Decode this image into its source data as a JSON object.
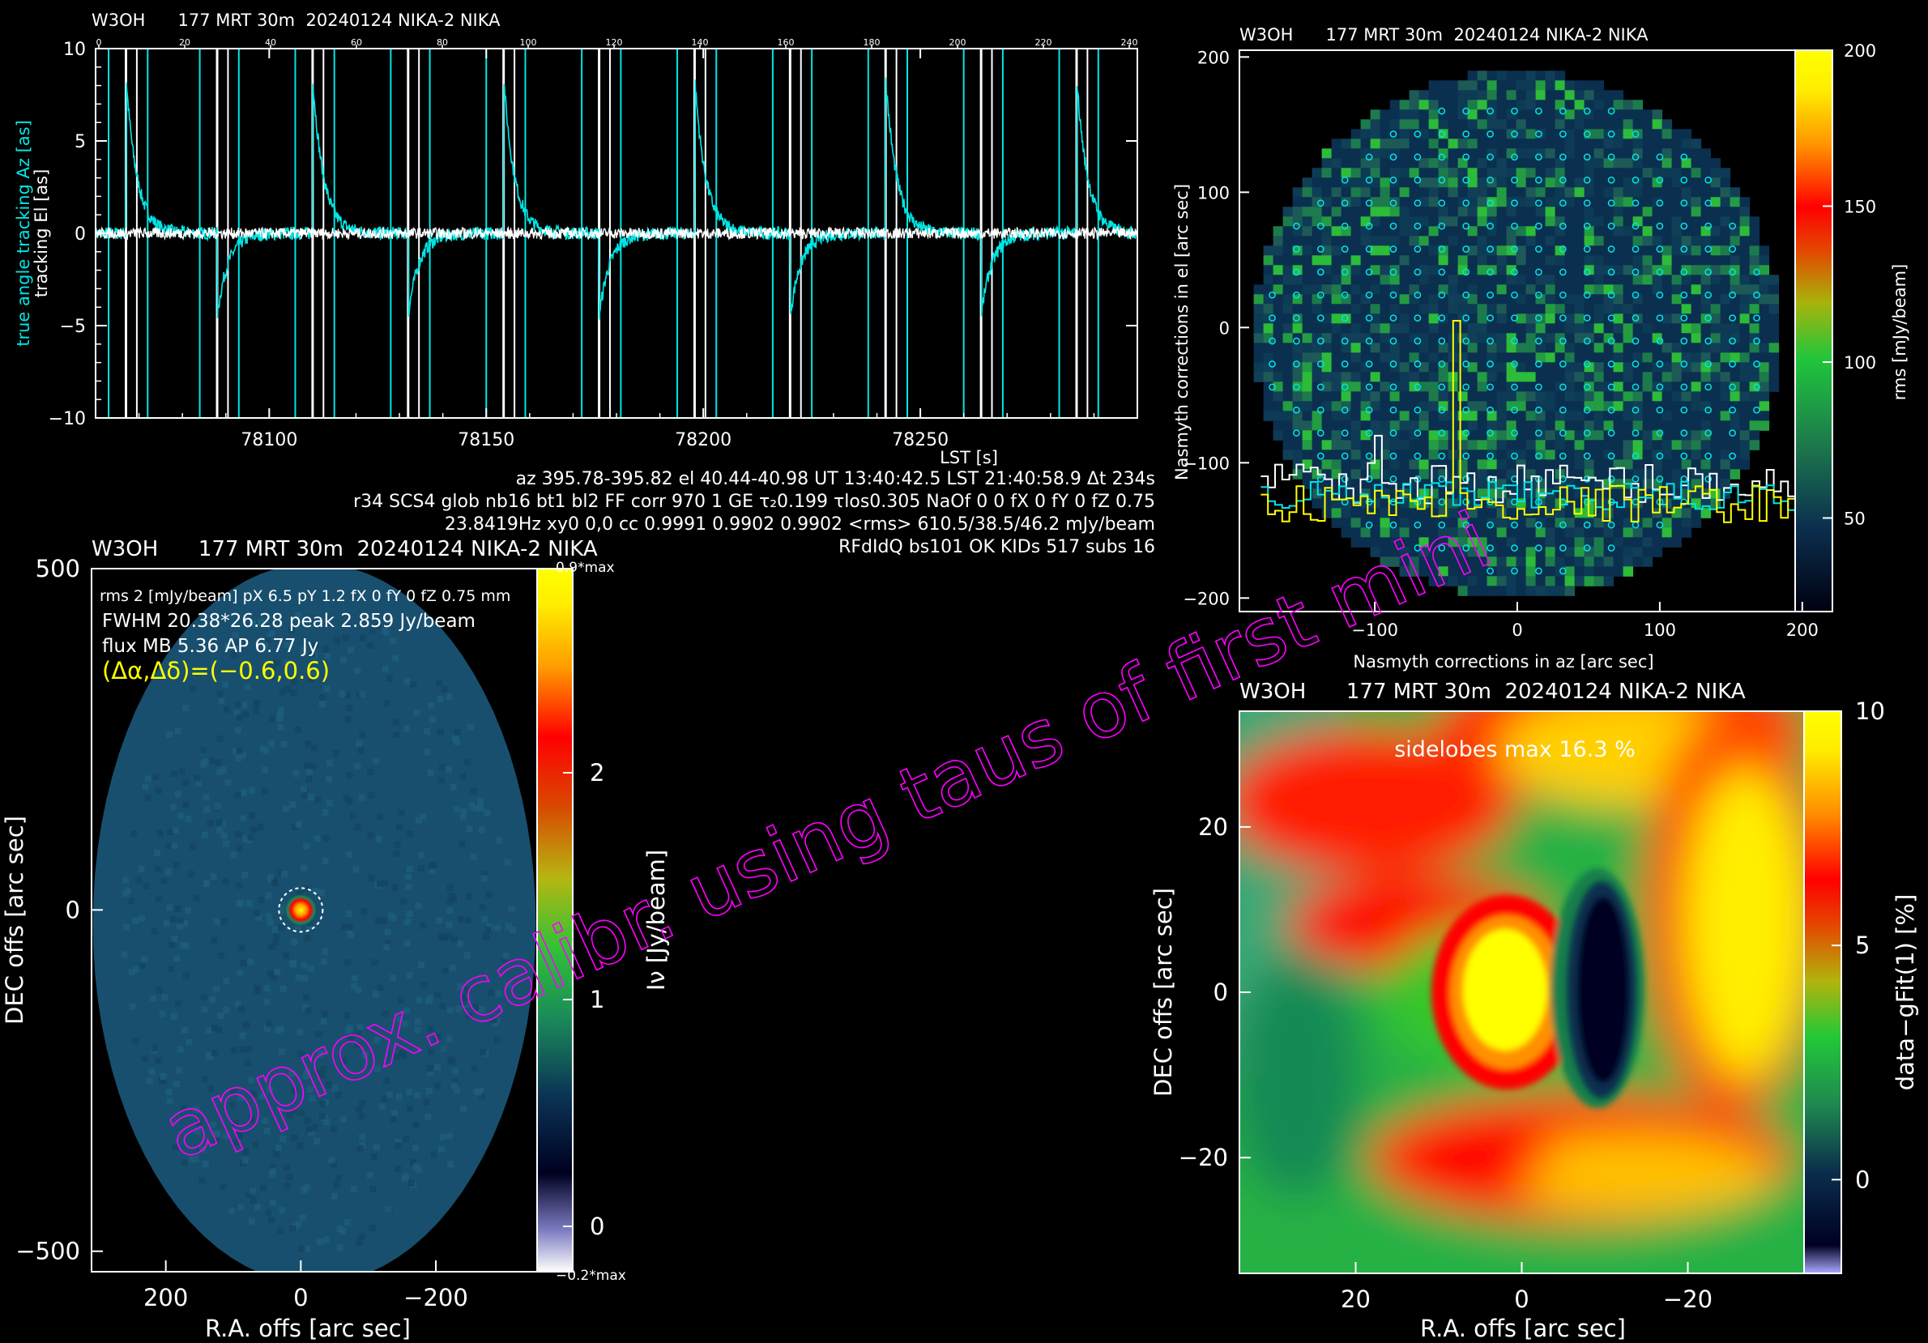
{
  "header": "W3OH      177 MRT 30m  20240124 NIKA-2 NIKA",
  "panel_headers": {
    "p1": "W3OH      177 MRT 30m  20240124 NIKA-2 NIKA",
    "p2": "W3OH      177 MRT 30m  20240124 NIKA-2 NIKA",
    "p3": "W3OH      177 MRT 30m  20240124 NIKA-2 NIKA",
    "p4": "W3OH      177 MRT 30m  20240124 NIKA-2 NIKA"
  },
  "info_lines": [
    "az 395.78-395.82 el 40.44-40.98 UT 13:40:42.5 LST 21:40:58.9 Δt 234s",
    "r34 SCS4 glob nb16 bt1 bl2 FF corr 970 1 GE τ₂0.199 τlos0.305 NaOf 0 0 fX 0 fY 0 fZ 0.75",
    "23.8419Hz xy0 0,0 cc 0.9991 0.9902 0.9902 <rms> 610.5/38.5/46.2 mJy/beam",
    "RFdIdQ bs101 OK KIDs 517 subs 16"
  ],
  "watermark": "approx. calibr. using taus of first mini",
  "colors": {
    "cyan": "#00e5e5",
    "yellow": "#ffff00",
    "magenta": "#ff00ff",
    "white": "#ffffff"
  },
  "chart_data": [
    {
      "id": "tracking",
      "type": "line",
      "xlabel": "LST [s]",
      "ylabel_1": "true angle tracking Az [as]",
      "ylabel_2": "tracking El [as]",
      "xlim": [
        78060,
        78300
      ],
      "ylim": [
        -10,
        10
      ],
      "x_ticks": [
        78100,
        78150,
        78200,
        78250
      ],
      "y_ticks": [
        -10,
        -5,
        0,
        5,
        10
      ],
      "top_ticks": [
        "0",
        "20",
        "40",
        "60",
        "80",
        "100",
        "120",
        "140",
        "160",
        "180",
        "200",
        "220",
        "240"
      ],
      "subscan_starts": [
        78067,
        78088,
        78110,
        78132,
        78154,
        78176,
        78198,
        78220,
        78242,
        78264,
        78286
      ],
      "series": [
        {
          "name": "true angle tracking Az [as]",
          "color": "#00e5e5",
          "peak": 8.5,
          "trough": -4.5,
          "decay_s": 2.5
        },
        {
          "name": "tracking El [as]",
          "color": "#ffffff",
          "noise": 0.3
        }
      ]
    },
    {
      "id": "beam-map",
      "type": "heatmap",
      "xlabel": "R.A. offs [arc sec]",
      "ylabel": "DEC offs [arc sec]",
      "colorbar_label": "Iν [Jy/beam]",
      "xlim": [
        310,
        -350
      ],
      "ylim": [
        -530,
        500
      ],
      "x_ticks": [
        200,
        0,
        -200
      ],
      "y_ticks": [
        500,
        0,
        -500
      ],
      "cbar_lim": [
        -0.2,
        2.9
      ],
      "cbar_ticks": [
        0,
        1,
        2
      ],
      "cbar_top_label": "0.9*max",
      "cbar_bottom_label": "−0.2*max",
      "source": {
        "ra": 0,
        "dec": 0,
        "peak_jy": 2.859
      },
      "annotations": [
        "rms 2 [mJy/beam] pX 6.5 pY 1.2 fX 0 fY 0 fZ 0.75 mm",
        "FWHM 20.38*26.28 peak 2.859 Jy/beam",
        "flux MB 5.36 AP 6.77 Jy",
        "(Δα,Δδ)=(−0.6,0.6)"
      ]
    },
    {
      "id": "nasmyth-rms",
      "type": "heatmap",
      "xlabel": "Nasmyth corrections in az [arc sec]",
      "ylabel": "Nasmyth corrections in el [arc sec]",
      "colorbar_label": "rms [mJy/beam]",
      "xlim": [
        -195,
        195
      ],
      "ylim": [
        -210,
        205
      ],
      "x_ticks": [
        -100,
        0,
        100,
        200
      ],
      "y_ticks": [
        -200,
        -100,
        0,
        100,
        200
      ],
      "cbar_lim": [
        20,
        200
      ],
      "cbar_ticks": [
        50,
        100,
        150,
        200
      ],
      "fov_radius": 185
    },
    {
      "id": "residual",
      "type": "heatmap",
      "xlabel": "R.A. offs [arc sec]",
      "ylabel": "DEC offs [arc sec]",
      "colorbar_label": "data−gFit(1) [%]",
      "annotation": "sidelobes max 16.3 %",
      "xlim": [
        34,
        -34
      ],
      "ylim": [
        -34,
        34
      ],
      "x_ticks": [
        20,
        0,
        -20
      ],
      "y_ticks": [
        20,
        0,
        -20
      ],
      "cbar_lim": [
        -2,
        10
      ],
      "cbar_ticks": [
        0,
        5,
        10
      ]
    }
  ]
}
